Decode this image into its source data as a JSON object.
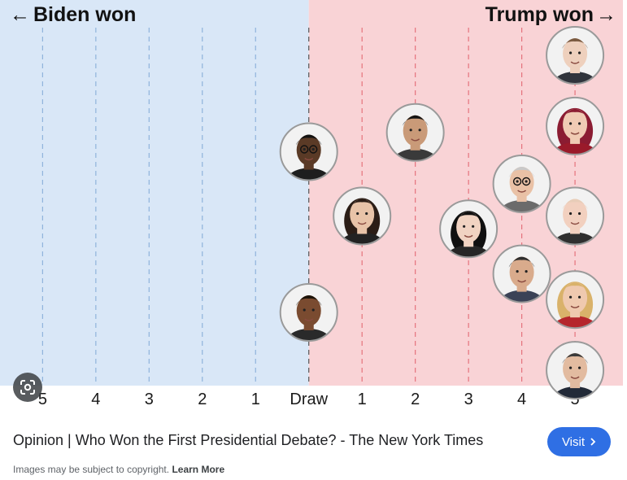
{
  "chart_data": {
    "type": "scatter",
    "left_label": "Biden won",
    "right_label": "Trump won",
    "left_arrow": "←",
    "right_arrow": "→",
    "ticks": [
      "5",
      "4",
      "3",
      "2",
      "1",
      "Draw",
      "1",
      "2",
      "3",
      "4",
      "5"
    ],
    "tick_values": [
      -5,
      -4,
      -3,
      -2,
      -1,
      0,
      1,
      2,
      3,
      4,
      5
    ],
    "xlim": [
      -5.8,
      5.9
    ],
    "colors": {
      "biden_bg": "#d9e7f7",
      "trump_bg": "#f9d3d6",
      "biden_line": "#8fb3db",
      "trump_line": "#e5727c",
      "draw_line": "#555555"
    },
    "points": [
      {
        "person": "panelist-1",
        "score": 0,
        "row": 2.0,
        "skin": "#5a3a26",
        "hair": "#111111",
        "shirt": "#1e1e1e",
        "glasses": true
      },
      {
        "person": "panelist-2",
        "score": 0,
        "row": 4.5,
        "skin": "#7a4b30",
        "hair": "#1a1208",
        "shirt": "#2a2a2a"
      },
      {
        "person": "panelist-3",
        "score": 1,
        "row": 3.0,
        "skin": "#e8c3a8",
        "hair": "#2b1d16",
        "shirt": "#222222",
        "long_hair": true
      },
      {
        "person": "panelist-4",
        "score": 2,
        "row": 1.7,
        "skin": "#c99a78",
        "hair": "#141414",
        "shirt": "#3a3a3a"
      },
      {
        "person": "panelist-5",
        "score": 3,
        "row": 3.2,
        "skin": "#f1d3c2",
        "hair": "#101010",
        "shirt": "#262626",
        "long_hair": true
      },
      {
        "person": "panelist-6",
        "score": 4,
        "row": 2.5,
        "skin": "#e9c1a6",
        "hair": "#c9c9c9",
        "shirt": "#6b6b6b",
        "glasses": true
      },
      {
        "person": "panelist-7",
        "score": 4,
        "row": 3.9,
        "skin": "#d9ab8c",
        "hair": "#2e2e2e",
        "shirt": "#3b4256"
      },
      {
        "person": "panelist-8",
        "score": 5,
        "row": 0.5,
        "skin": "#eed0bd",
        "hair": "#7a5a40",
        "shirt": "#30343c"
      },
      {
        "person": "panelist-9",
        "score": 5,
        "row": 1.6,
        "skin": "#f0cbb4",
        "hair": "#8b1c32",
        "shirt": "#9a1a2a",
        "long_hair": true
      },
      {
        "person": "panelist-10",
        "score": 5,
        "row": 3.0,
        "skin": "#f2d0bf",
        "hair": "#e8cdb8",
        "shirt": "#2f2f2f"
      },
      {
        "person": "panelist-11",
        "score": 5,
        "row": 4.3,
        "skin": "#efc9af",
        "hair": "#d9b26a",
        "shirt": "#b5262c",
        "long_hair": true
      },
      {
        "person": "panelist-12",
        "score": 5,
        "row": 5.4,
        "skin": "#e2bba0",
        "hair": "#3a3a3a",
        "shirt": "#222a38"
      }
    ]
  },
  "caption": "Opinion | Who Won the First Presidential Debate? - The New York Times",
  "visit_label": "Visit",
  "copyright_text": "Images may be subject to copyright.",
  "learn_more_label": "Learn More"
}
